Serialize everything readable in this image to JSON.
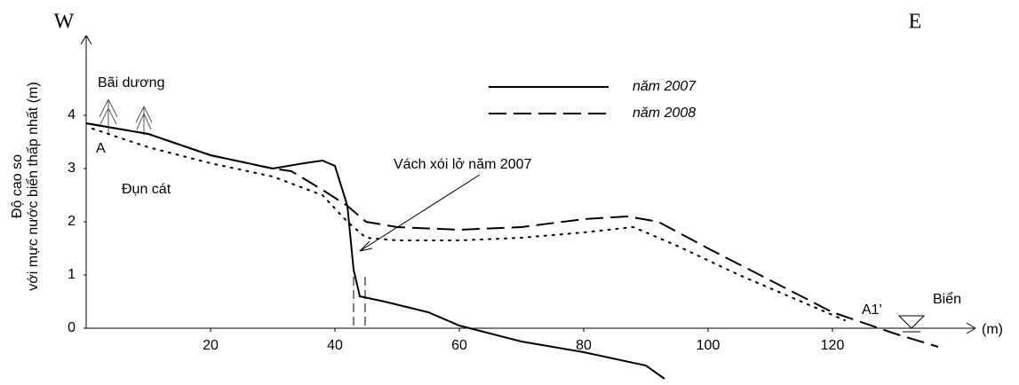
{
  "chart_data": {
    "type": "line",
    "direction_left": "W",
    "direction_right": "E",
    "y_label_lines": [
      "Độ cao so",
      "với mực nước biển thấp nhất (m)"
    ],
    "x_unit": "(m)",
    "xlim": [
      0,
      140
    ],
    "xticks": [
      20,
      40,
      60,
      80,
      100,
      120
    ],
    "ylim": [
      -1,
      5.5
    ],
    "yticks": [
      0,
      1,
      2,
      3,
      4
    ],
    "annotations": [
      "Bãi dương",
      "A",
      "Đụn cát",
      "Vách xói lở năm 2007",
      "A1'",
      "Biển"
    ],
    "series": [
      {
        "name": "năm 2007",
        "color": "#000000",
        "line_style": "solid",
        "x": [
          0,
          10,
          20,
          30,
          35,
          38,
          40,
          42,
          43,
          44,
          48,
          55,
          60,
          70,
          80,
          90,
          93
        ],
        "values": [
          3.85,
          3.65,
          3.25,
          3.0,
          3.1,
          3.15,
          3.05,
          2.3,
          1.1,
          0.6,
          0.5,
          0.3,
          0.05,
          -0.25,
          -0.45,
          -0.7,
          -0.95
        ]
      },
      {
        "name": "năm 2008",
        "color": "#000000",
        "line_style": "dashed",
        "x": [
          0,
          10,
          20,
          30,
          33,
          38,
          42,
          45,
          50,
          60,
          70,
          80,
          87,
          92,
          100,
          110,
          120,
          130,
          137
        ],
        "values": [
          3.85,
          3.65,
          3.25,
          3.0,
          2.95,
          2.6,
          2.3,
          2.0,
          1.9,
          1.85,
          1.9,
          2.05,
          2.1,
          2.0,
          1.5,
          0.9,
          0.3,
          -0.1,
          -0.35
        ]
      },
      {
        "color": "#000000",
        "line_style": "dotted",
        "x": [
          1,
          10,
          20,
          30,
          38,
          42,
          45,
          50,
          60,
          70,
          80,
          88,
          95,
          105,
          115,
          122
        ],
        "values": [
          3.75,
          3.4,
          3.1,
          2.85,
          2.5,
          2.0,
          1.7,
          1.65,
          1.65,
          1.7,
          1.8,
          1.9,
          1.55,
          1.0,
          0.5,
          0.15
        ]
      }
    ]
  }
}
